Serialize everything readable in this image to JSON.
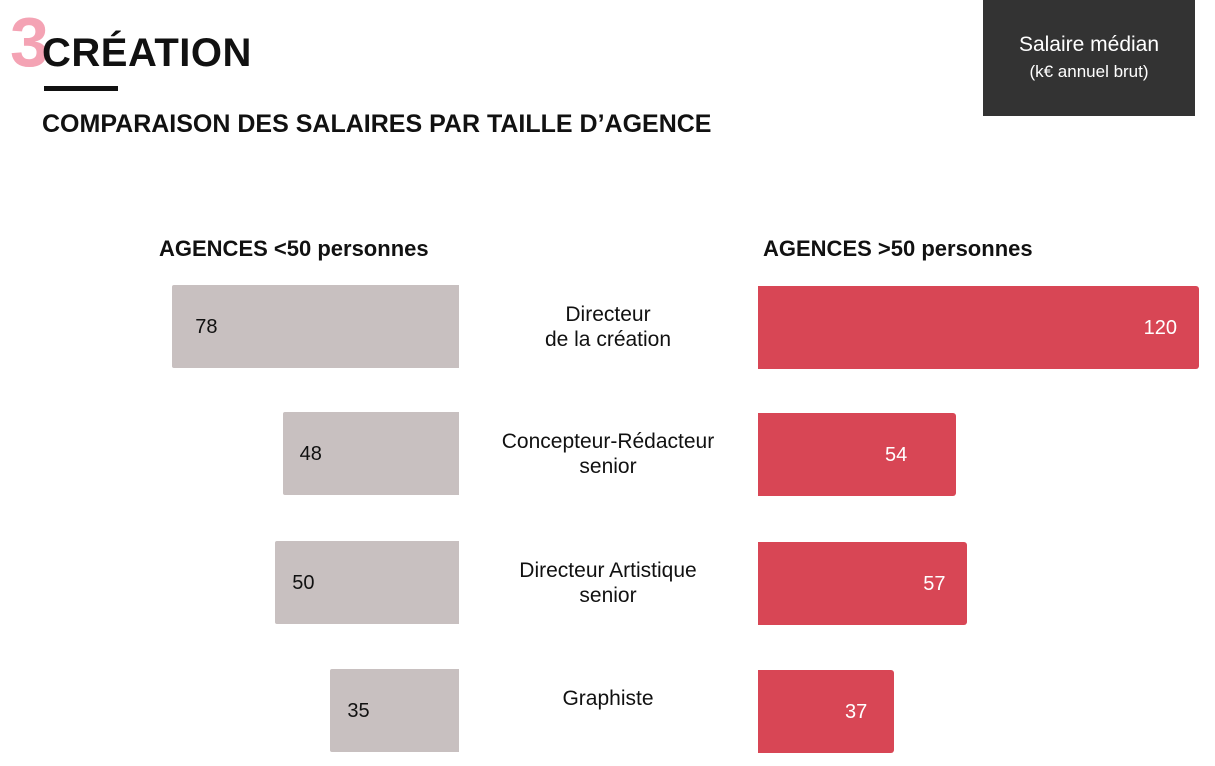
{
  "header": {
    "section_number": "3",
    "section_title": "CRÉATION",
    "subtitle": "COMPARAISON DES SALAIRES PAR TAILLE D’AGENCE"
  },
  "legend": {
    "line1": "Salaire médian",
    "line2": "(k€ annuel brut)"
  },
  "colors": {
    "small_agency_bar": "#c8c0c0",
    "large_agency_bar": "#d84655",
    "section_number": "#f4a3b4",
    "legend_background": "#333333"
  },
  "chart_data": {
    "type": "bar",
    "orientation": "horizontal-butterfly",
    "categories": [
      "Directeur\nde la création",
      "Concepteur-Rédacteur\nsenior",
      "Directeur Artistique\nsenior",
      "Graphiste"
    ],
    "series": [
      {
        "name": "AGENCES <50 personnes",
        "values": [
          78,
          48,
          50,
          35
        ]
      },
      {
        "name": "AGENCES >50 personnes",
        "values": [
          120,
          54,
          57,
          37
        ]
      }
    ]
  }
}
